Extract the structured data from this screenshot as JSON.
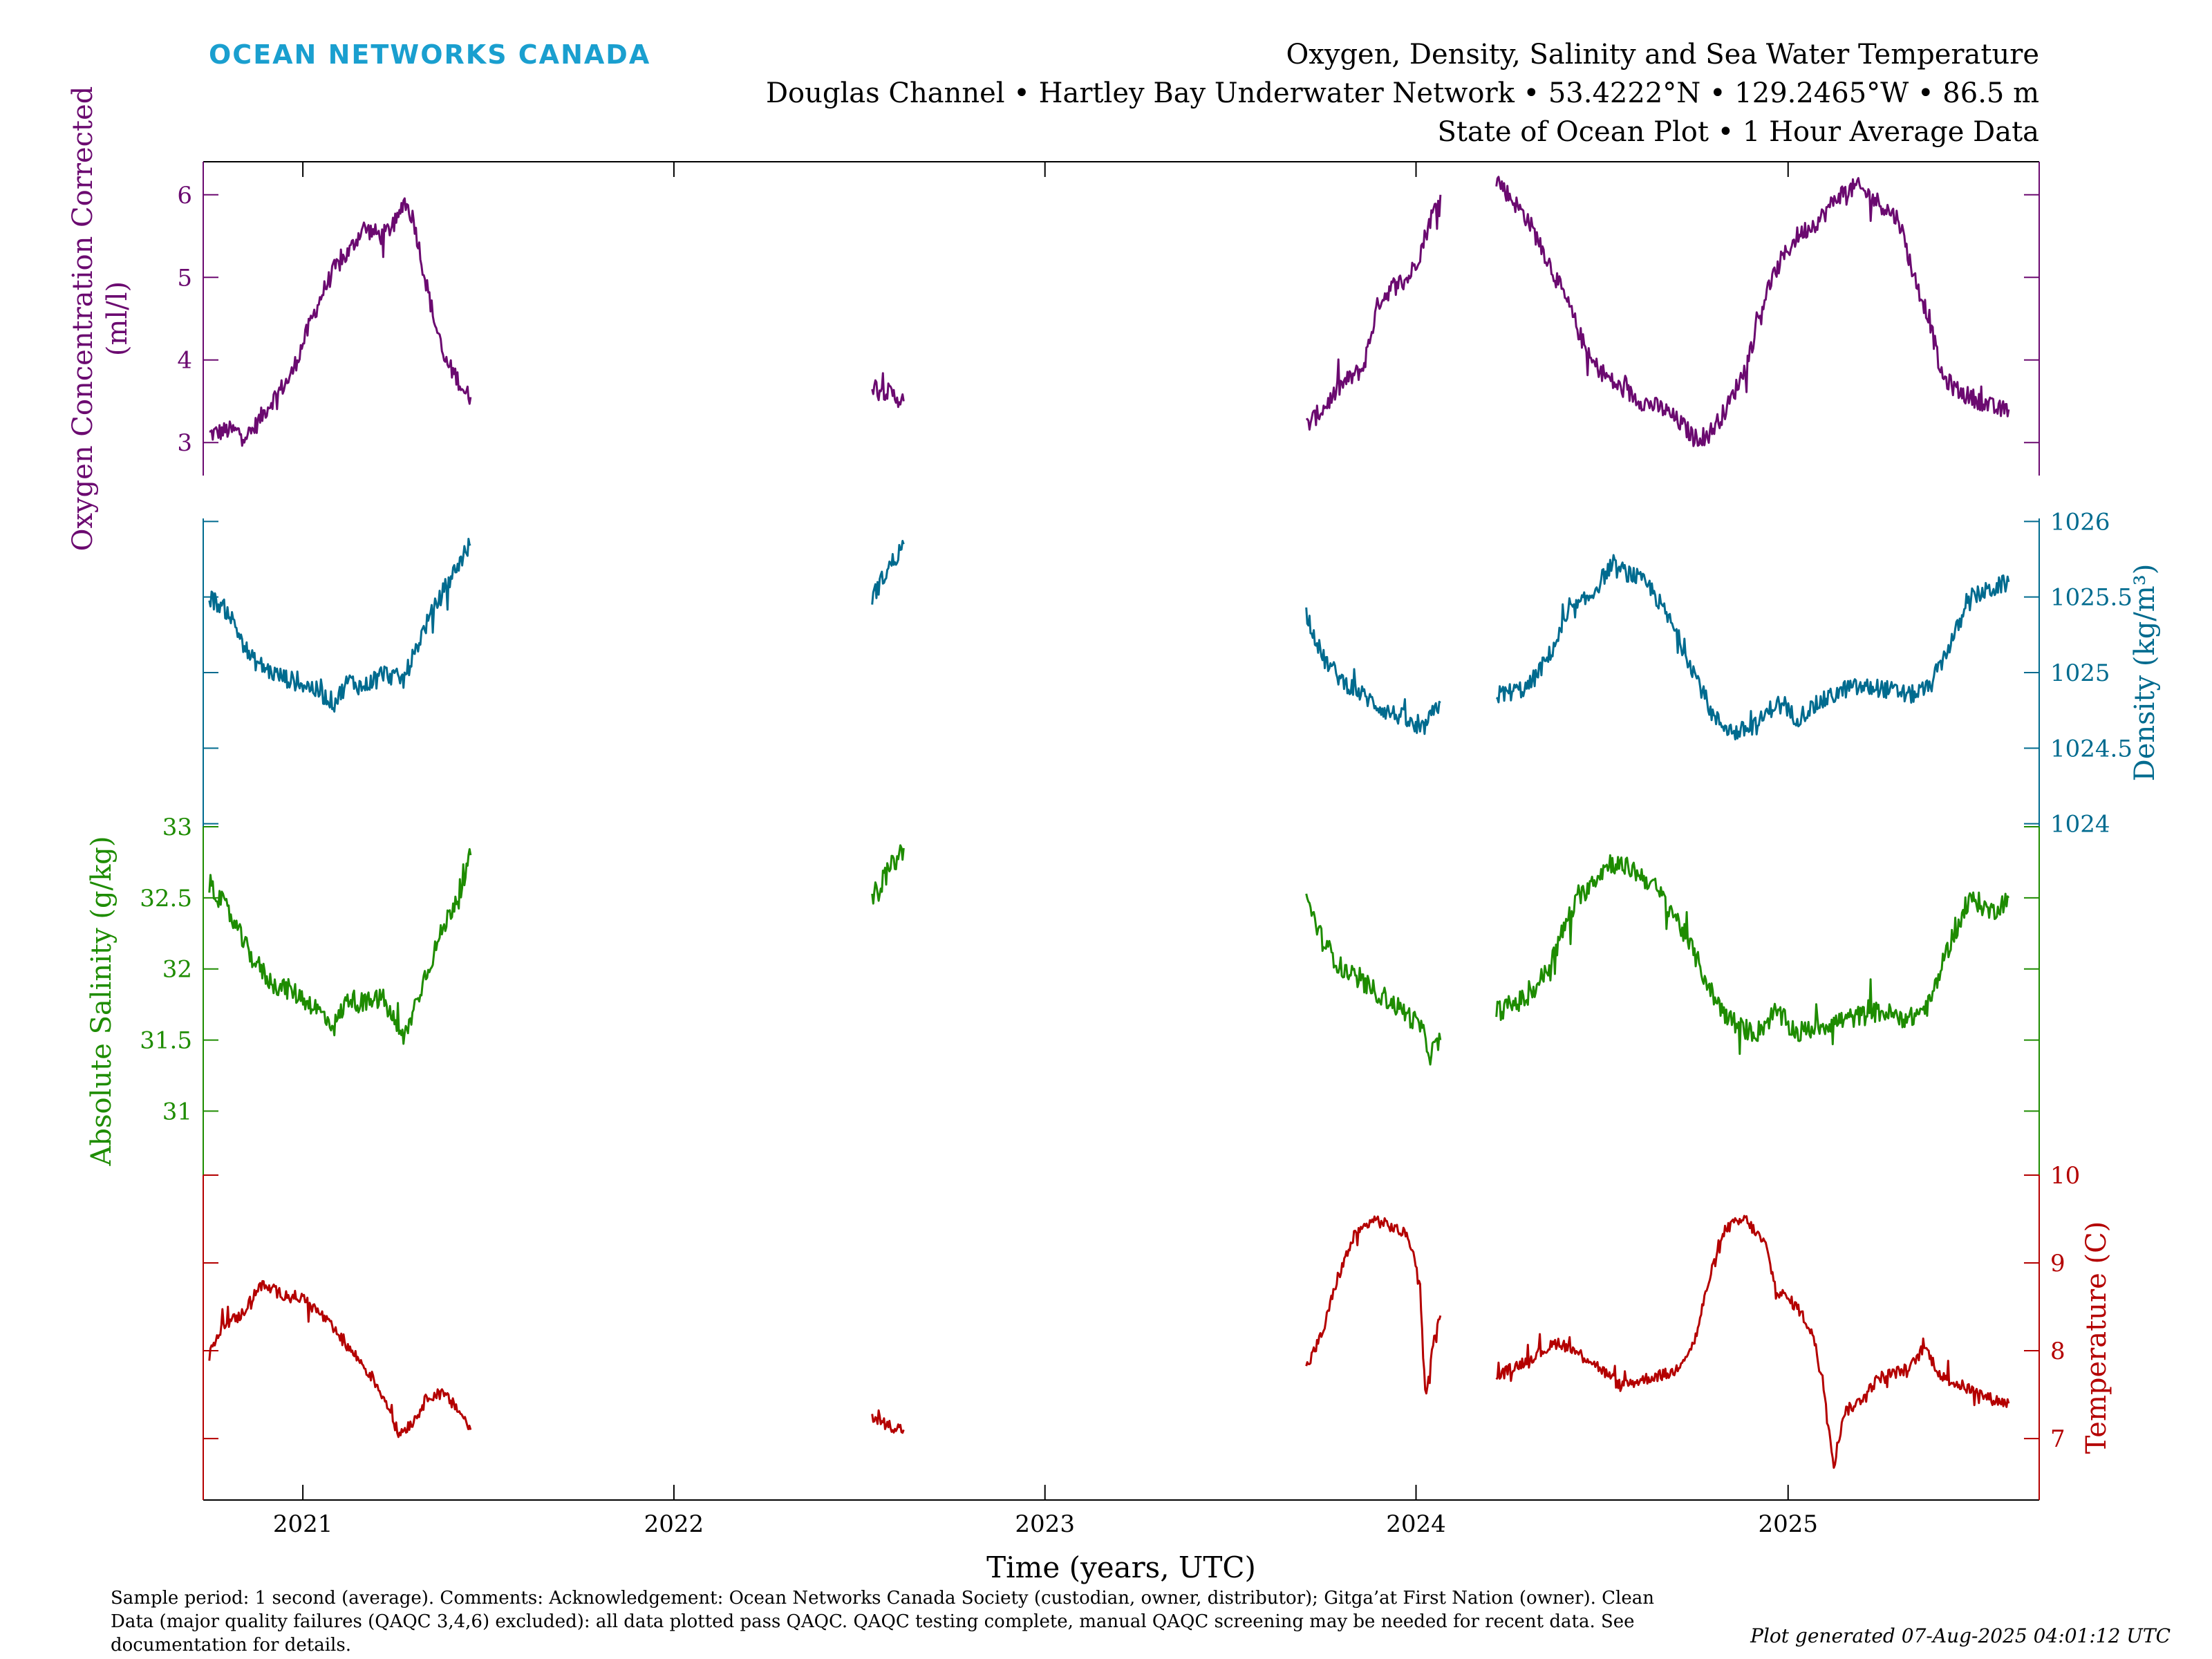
{
  "header": {
    "brand": "OCEAN NETWORKS CANADA",
    "title_line1": "Oxygen, Density, Salinity and Sea Water Temperature",
    "title_line2": "Douglas Channel • Hartley Bay Underwater Network • 53.4222°N • 129.2465°W • 86.5 m",
    "title_line3": "State of Ocean Plot • 1 Hour Average Data"
  },
  "footer": {
    "caption_lines": [
      "Sample period: 1 second (average). Comments: Acknowledgement: Ocean Networks Canada Society (custodian, owner, distributor); Gitga’at First Nation (owner). Clean",
      "Data (major quality failures (QAQC 3,4,6) excluded): all data plotted pass QAQC. QAQC testing complete, manual QAQC screening may be needed for recent data. See",
      "documentation for details."
    ],
    "generated": "Plot generated 07-Aug-2025 04:01:12 UTC"
  },
  "colors": {
    "oxygen": "#6b0a70",
    "density": "#006b8f",
    "salinity": "#1e8c00",
    "temperature": "#b40000",
    "brand": "#1a9fcf",
    "axis": "#000000"
  },
  "chart_data": {
    "type": "line",
    "xlabel": "Time (years, UTC)",
    "x_range": [
      "2020-09-25",
      "2025-09-05"
    ],
    "x_ticks": [
      "2021",
      "2022",
      "2023",
      "2024",
      "2025"
    ],
    "panels": [
      {
        "key": "oxygen",
        "ylabel_lines": [
          "Oxygen Concentration Corrected",
          "(ml/l)"
        ],
        "axis_side": "left",
        "y_range": [
          2.6,
          6.4
        ],
        "ticks": [
          "3",
          "4",
          "5",
          "6"
        ],
        "segments": [
          [
            [
              "2020-10-01",
              3.1
            ],
            [
              "2020-10-20",
              3.15
            ],
            [
              "2020-11-10",
              3.1
            ],
            [
              "2020-12-01",
              3.5
            ],
            [
              "2020-12-20",
              3.8
            ],
            [
              "2021-01-10",
              4.5
            ],
            [
              "2021-01-20",
              4.8
            ],
            [
              "2021-02-01",
              5.1
            ],
            [
              "2021-02-15",
              5.3
            ],
            [
              "2021-03-01",
              5.6
            ],
            [
              "2021-03-20",
              5.5
            ],
            [
              "2021-04-05",
              5.7
            ],
            [
              "2021-04-10",
              5.95
            ],
            [
              "2021-04-20",
              5.7
            ],
            [
              "2021-05-01",
              5.0
            ],
            [
              "2021-05-10",
              4.5
            ],
            [
              "2021-05-20",
              4.0
            ],
            [
              "2021-06-01",
              3.8
            ],
            [
              "2021-06-10",
              3.6
            ],
            [
              "2021-06-15",
              3.55
            ]
          ],
          [
            [
              "2022-07-15",
              3.7
            ],
            [
              "2022-08-01",
              3.6
            ],
            [
              "2022-08-15",
              3.5
            ]
          ],
          [
            [
              "2023-09-15",
              3.2
            ],
            [
              "2023-10-01",
              3.4
            ],
            [
              "2023-10-20",
              3.7
            ],
            [
              "2023-11-10",
              3.9
            ],
            [
              "2023-11-25",
              4.7
            ],
            [
              "2023-12-10",
              4.9
            ],
            [
              "2023-12-25",
              5.0
            ],
            [
              "2024-01-05",
              5.3
            ],
            [
              "2024-01-15",
              5.7
            ],
            [
              "2024-01-25",
              6.0
            ]
          ],
          [
            [
              "2024-03-20",
              6.2
            ],
            [
              "2024-04-01",
              6.0
            ],
            [
              "2024-04-20",
              5.7
            ],
            [
              "2024-05-10",
              5.2
            ],
            [
              "2024-06-01",
              4.6
            ],
            [
              "2024-06-20",
              4.0
            ],
            [
              "2024-07-15",
              3.7
            ],
            [
              "2024-08-10",
              3.5
            ],
            [
              "2024-09-01",
              3.4
            ],
            [
              "2024-09-20",
              3.2
            ],
            [
              "2024-10-01",
              3.05
            ],
            [
              "2024-10-15",
              3.1
            ],
            [
              "2024-11-01",
              3.4
            ],
            [
              "2024-11-20",
              3.9
            ],
            [
              "2024-12-10",
              4.8
            ],
            [
              "2024-12-25",
              5.2
            ],
            [
              "2025-01-10",
              5.5
            ],
            [
              "2025-02-01",
              5.7
            ],
            [
              "2025-02-20",
              6.0
            ],
            [
              "2025-03-10",
              6.1
            ],
            [
              "2025-04-01",
              5.9
            ],
            [
              "2025-04-20",
              5.7
            ],
            [
              "2025-05-05",
              5.0
            ],
            [
              "2025-05-20",
              4.5
            ],
            [
              "2025-06-01",
              3.8
            ],
            [
              "2025-06-20",
              3.6
            ],
            [
              "2025-07-10",
              3.5
            ],
            [
              "2025-07-25",
              3.4
            ],
            [
              "2025-08-06",
              3.4
            ]
          ]
        ]
      },
      {
        "key": "density",
        "ylabel_lines": [
          "Density (kg/m³)"
        ],
        "axis_side": "right",
        "y_range": [
          1023.98,
          1026.02
        ],
        "ticks": [
          "1024",
          "1024.5",
          "1025",
          "1025.5",
          "1026"
        ],
        "segments": [
          [
            [
              "2020-10-01",
              1025.5
            ],
            [
              "2020-10-20",
              1025.4
            ],
            [
              "2020-11-10",
              1025.1
            ],
            [
              "2020-12-01",
              1025.0
            ],
            [
              "2020-12-20",
              1024.95
            ],
            [
              "2021-01-10",
              1024.9
            ],
            [
              "2021-02-01",
              1024.8
            ],
            [
              "2021-02-15",
              1024.95
            ],
            [
              "2021-03-01",
              1024.9
            ],
            [
              "2021-03-20",
              1025.0
            ],
            [
              "2021-04-10",
              1024.95
            ],
            [
              "2021-05-01",
              1025.3
            ],
            [
              "2021-05-20",
              1025.55
            ],
            [
              "2021-06-10",
              1025.8
            ],
            [
              "2021-06-15",
              1025.85
            ]
          ],
          [
            [
              "2022-07-15",
              1025.5
            ],
            [
              "2022-08-01",
              1025.7
            ],
            [
              "2022-08-15",
              1025.85
            ]
          ],
          [
            [
              "2023-09-15",
              1025.4
            ],
            [
              "2023-10-01",
              1025.1
            ],
            [
              "2023-10-20",
              1024.95
            ],
            [
              "2023-11-10",
              1024.85
            ],
            [
              "2023-12-01",
              1024.75
            ],
            [
              "2023-12-20",
              1024.7
            ],
            [
              "2024-01-05",
              1024.6
            ],
            [
              "2024-01-15",
              1024.7
            ],
            [
              "2024-01-25",
              1024.8
            ]
          ],
          [
            [
              "2024-03-20",
              1024.85
            ],
            [
              "2024-04-20",
              1024.9
            ],
            [
              "2024-05-10",
              1025.1
            ],
            [
              "2024-06-01",
              1025.4
            ],
            [
              "2024-06-20",
              1025.5
            ],
            [
              "2024-07-10",
              1025.7
            ],
            [
              "2024-08-01",
              1025.65
            ],
            [
              "2024-08-20",
              1025.55
            ],
            [
              "2024-09-10",
              1025.3
            ],
            [
              "2024-10-01",
              1025.0
            ],
            [
              "2024-10-20",
              1024.7
            ],
            [
              "2024-11-10",
              1024.6
            ],
            [
              "2024-12-01",
              1024.65
            ],
            [
              "2024-12-20",
              1024.8
            ],
            [
              "2025-01-10",
              1024.7
            ],
            [
              "2025-02-01",
              1024.8
            ],
            [
              "2025-03-01",
              1024.9
            ],
            [
              "2025-04-01",
              1024.9
            ],
            [
              "2025-05-01",
              1024.85
            ],
            [
              "2025-05-20",
              1024.9
            ],
            [
              "2025-06-10",
              1025.2
            ],
            [
              "2025-07-01",
              1025.5
            ],
            [
              "2025-07-20",
              1025.55
            ],
            [
              "2025-08-06",
              1025.6
            ]
          ]
        ]
      },
      {
        "key": "salinity",
        "ylabel_lines": [
          "Absolute Salinity (g/kg)"
        ],
        "axis_side": "left",
        "y_range": [
          30.55,
          33.0
        ],
        "ticks": [
          "31",
          "31.5",
          "32",
          "32.5",
          "33"
        ],
        "segments": [
          [
            [
              "2020-10-01",
              32.6
            ],
            [
              "2020-10-20",
              32.4
            ],
            [
              "2020-11-10",
              32.1
            ],
            [
              "2020-12-01",
              31.9
            ],
            [
              "2020-12-20",
              31.85
            ],
            [
              "2021-01-10",
              31.75
            ],
            [
              "2021-02-01",
              31.6
            ],
            [
              "2021-02-15",
              31.8
            ],
            [
              "2021-03-01",
              31.75
            ],
            [
              "2021-03-20",
              31.8
            ],
            [
              "2021-04-10",
              31.5
            ],
            [
              "2021-05-01",
              31.95
            ],
            [
              "2021-05-20",
              32.3
            ],
            [
              "2021-06-10",
              32.65
            ],
            [
              "2021-06-15",
              32.8
            ]
          ],
          [
            [
              "2022-07-15",
              32.5
            ],
            [
              "2022-08-01",
              32.7
            ],
            [
              "2022-08-15",
              32.85
            ]
          ],
          [
            [
              "2023-09-15",
              32.5
            ],
            [
              "2023-10-01",
              32.2
            ],
            [
              "2023-10-20",
              32.0
            ],
            [
              "2023-11-10",
              31.9
            ],
            [
              "2023-12-01",
              31.8
            ],
            [
              "2023-12-20",
              31.7
            ],
            [
              "2024-01-05",
              31.6
            ],
            [
              "2024-01-15",
              31.4
            ],
            [
              "2024-01-25",
              31.5
            ]
          ],
          [
            [
              "2024-03-20",
              31.7
            ],
            [
              "2024-04-20",
              31.8
            ],
            [
              "2024-05-10",
              32.0
            ],
            [
              "2024-06-01",
              32.4
            ],
            [
              "2024-06-20",
              32.6
            ],
            [
              "2024-07-10",
              32.75
            ],
            [
              "2024-08-01",
              32.7
            ],
            [
              "2024-08-20",
              32.6
            ],
            [
              "2024-09-10",
              32.4
            ],
            [
              "2024-10-01",
              32.1
            ],
            [
              "2024-10-20",
              31.8
            ],
            [
              "2024-11-10",
              31.6
            ],
            [
              "2024-12-01",
              31.55
            ],
            [
              "2024-12-20",
              31.7
            ],
            [
              "2025-01-10",
              31.55
            ],
            [
              "2025-02-01",
              31.6
            ],
            [
              "2025-03-01",
              31.65
            ],
            [
              "2025-04-01",
              31.7
            ],
            [
              "2025-05-01",
              31.65
            ],
            [
              "2025-05-20",
              31.75
            ],
            [
              "2025-06-10",
              32.2
            ],
            [
              "2025-07-01",
              32.5
            ],
            [
              "2025-07-20",
              32.4
            ],
            [
              "2025-08-06",
              32.5
            ]
          ]
        ]
      },
      {
        "key": "temperature",
        "ylabel_lines": [
          "Temperature (C)"
        ],
        "axis_side": "right",
        "y_range": [
          6.3,
          10.0
        ],
        "ticks": [
          "7",
          "8",
          "9",
          "10"
        ],
        "segments": [
          [
            [
              "2020-10-01",
              7.95
            ],
            [
              "2020-10-15",
              8.3
            ],
            [
              "2020-11-01",
              8.4
            ],
            [
              "2020-11-20",
              8.75
            ],
            [
              "2020-12-10",
              8.65
            ],
            [
              "2021-01-01",
              8.6
            ],
            [
              "2021-01-20",
              8.4
            ],
            [
              "2021-02-10",
              8.1
            ],
            [
              "2021-02-25",
              7.9
            ],
            [
              "2021-03-10",
              7.7
            ],
            [
              "2021-03-25",
              7.4
            ],
            [
              "2021-04-05",
              7.05
            ],
            [
              "2021-04-20",
              7.2
            ],
            [
              "2021-05-05",
              7.5
            ],
            [
              "2021-05-20",
              7.5
            ],
            [
              "2021-06-05",
              7.3
            ],
            [
              "2021-06-15",
              7.1
            ]
          ],
          [
            [
              "2022-07-15",
              7.25
            ],
            [
              "2022-08-01",
              7.15
            ],
            [
              "2022-08-15",
              7.1
            ]
          ],
          [
            [
              "2023-09-15",
              7.8
            ],
            [
              "2023-10-01",
              8.2
            ],
            [
              "2023-10-15",
              8.8
            ],
            [
              "2023-11-01",
              9.3
            ],
            [
              "2023-11-20",
              9.5
            ],
            [
              "2023-12-10",
              9.4
            ],
            [
              "2023-12-25",
              9.3
            ],
            [
              "2024-01-05",
              8.7
            ],
            [
              "2024-01-10",
              7.5
            ],
            [
              "2024-01-20",
              8.2
            ],
            [
              "2024-01-25",
              8.4
            ]
          ],
          [
            [
              "2024-03-20",
              7.7
            ],
            [
              "2024-04-20",
              7.9
            ],
            [
              "2024-05-20",
              8.1
            ],
            [
              "2024-06-20",
              7.9
            ],
            [
              "2024-07-20",
              7.6
            ],
            [
              "2024-08-20",
              7.7
            ],
            [
              "2024-09-10",
              7.75
            ],
            [
              "2024-10-01",
              8.1
            ],
            [
              "2024-10-15",
              8.8
            ],
            [
              "2024-11-01",
              9.4
            ],
            [
              "2024-11-20",
              9.5
            ],
            [
              "2024-12-10",
              9.2
            ],
            [
              "2024-12-20",
              8.7
            ],
            [
              "2025-01-10",
              8.5
            ],
            [
              "2025-01-25",
              8.2
            ],
            [
              "2025-02-05",
              7.6
            ],
            [
              "2025-02-15",
              6.7
            ],
            [
              "2025-02-25",
              7.3
            ],
            [
              "2025-03-10",
              7.4
            ],
            [
              "2025-04-01",
              7.7
            ],
            [
              "2025-05-01",
              7.8
            ],
            [
              "2025-05-15",
              8.05
            ],
            [
              "2025-06-01",
              7.7
            ],
            [
              "2025-07-01",
              7.55
            ],
            [
              "2025-07-20",
              7.45
            ],
            [
              "2025-08-06",
              7.4
            ]
          ]
        ]
      }
    ]
  }
}
